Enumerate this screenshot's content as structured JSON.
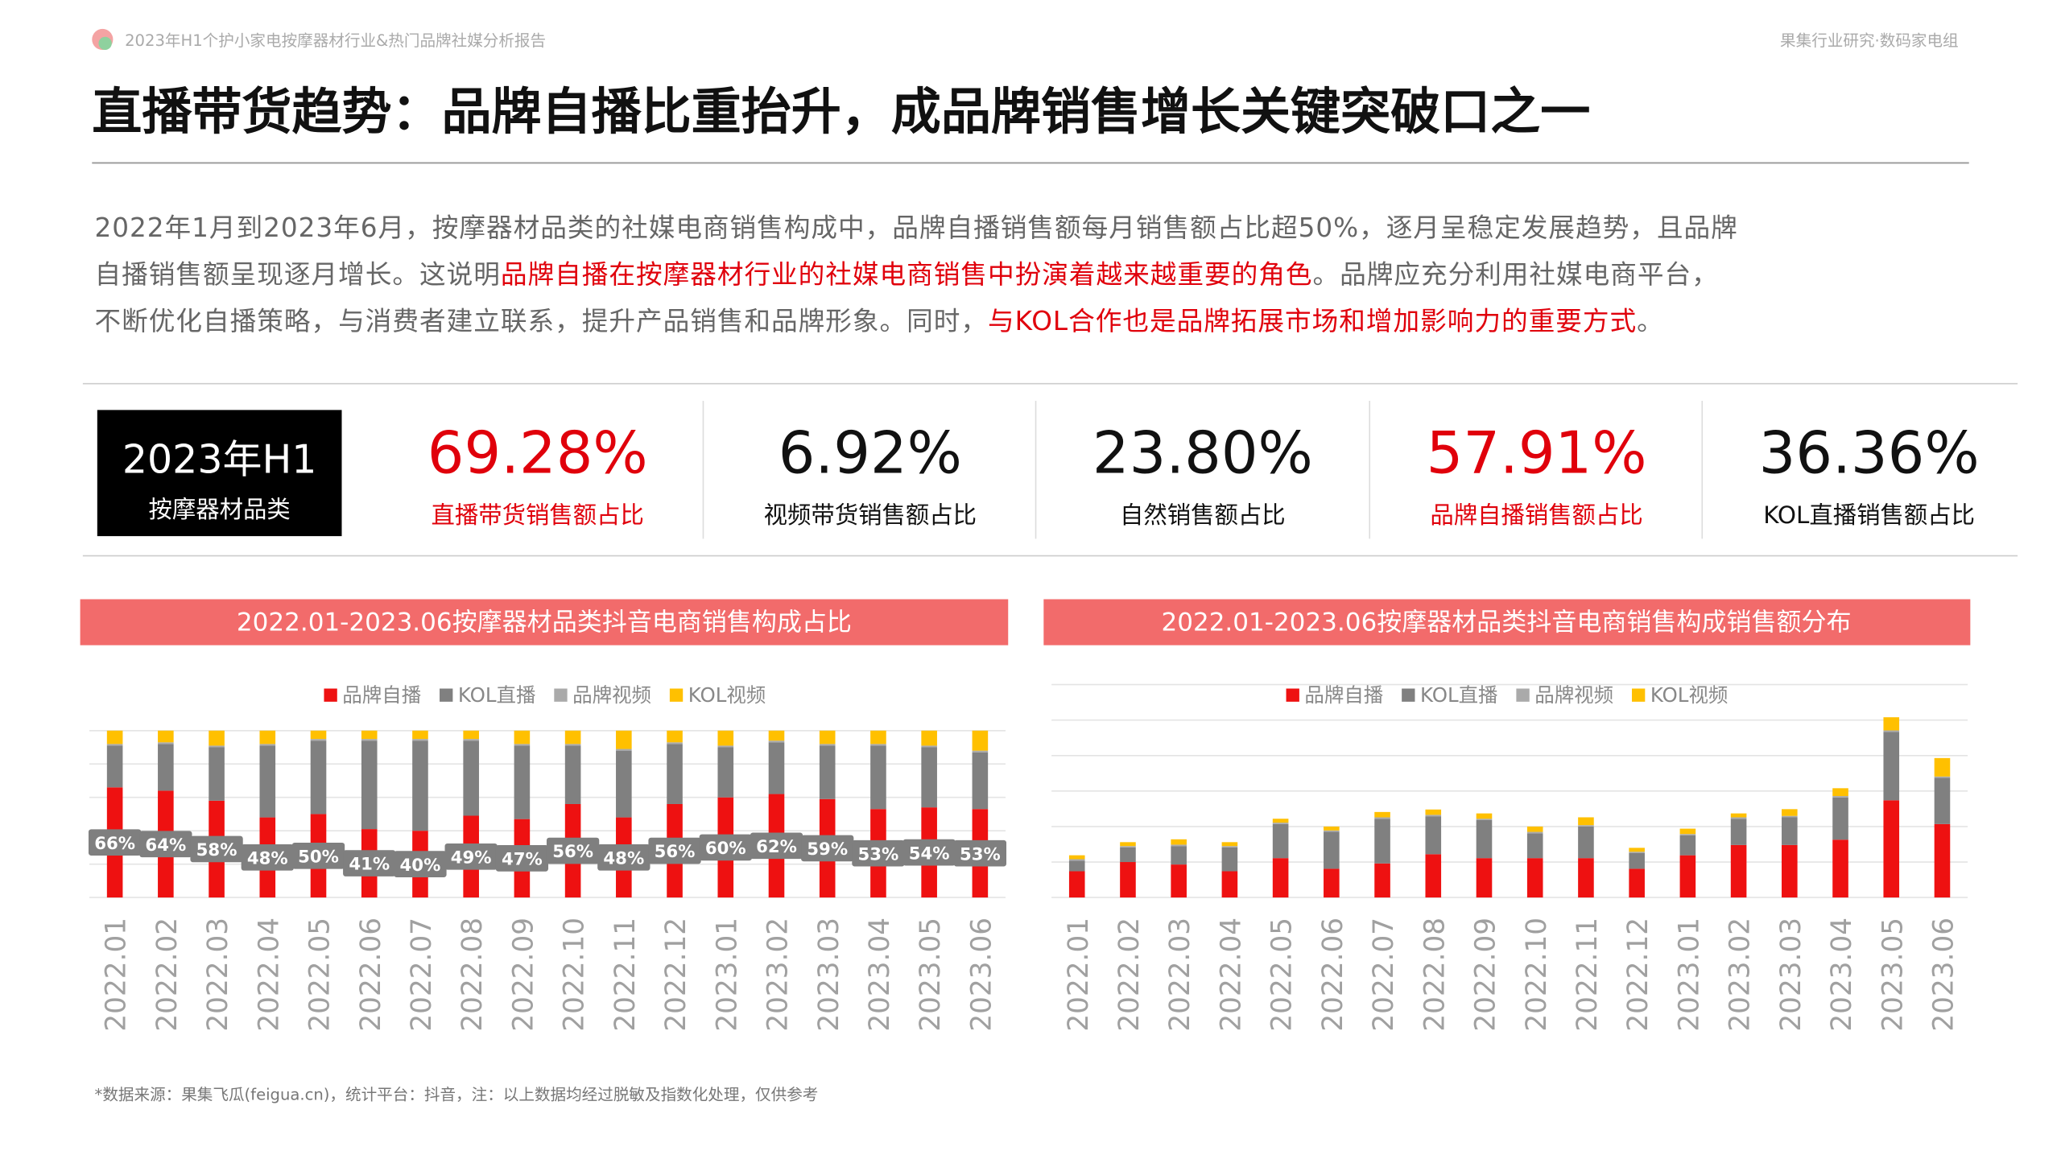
{
  "header": {
    "left": "2023年H1个护小家电按摩器材行业&热门品牌社媒分析报告",
    "right": "果集行业研究·数码家电组"
  },
  "title": "直播带货趋势：品牌自播比重抬升，成品牌销售增长关键突破口之一",
  "paragraph": [
    [
      {
        "text": "2022年1月到2023年6月，按摩器材品类的社媒电商销售构成中，品牌自播销售额每月销售额占比超50%，逐月呈稳定发展趋势，且品牌",
        "color": "#666666"
      }
    ],
    [
      {
        "text": "自播销售额呈现逐月增长。这说明",
        "color": "#666666"
      },
      {
        "text": "品牌自播在按摩器材行业的社媒电商销售中扮演着越来越重要的角色",
        "color": "#e0000b"
      },
      {
        "text": "。品牌应充分利用社媒电商平台，",
        "color": "#666666"
      }
    ],
    [
      {
        "text": "不断优化自播策略，与消费者建立联系，提升产品销售和品牌形象。同时，",
        "color": "#666666"
      },
      {
        "text": "与KOL合作也是品牌拓展市场和增加影响力的重要方式",
        "color": "#e0000b"
      },
      {
        "text": "。",
        "color": "#666666"
      }
    ]
  ],
  "badge": {
    "title": "2023年H1",
    "subtitle": "按摩器材品类"
  },
  "stats": [
    {
      "value": "69.28%",
      "label": "直播带货销售额占比",
      "color": "#e0000b"
    },
    {
      "value": "6.92%",
      "label": "视频带货销售额占比",
      "color": "#111111"
    },
    {
      "value": "23.80%",
      "label": "自然销售额占比",
      "color": "#111111"
    },
    {
      "value": "57.91%",
      "label": "品牌自播销售额占比",
      "color": "#e0000b"
    },
    {
      "value": "36.36%",
      "label": "KOL直播销售额占比",
      "color": "#111111"
    }
  ],
  "chart_data": [
    {
      "type": "stacked_bar",
      "title": "2022.01-2023.06按摩器材品类抖音电商销售构成占比",
      "categories": [
        "2022.01",
        "2022.02",
        "2022.03",
        "2022.04",
        "2022.05",
        "2022.06",
        "2022.07",
        "2022.08",
        "2022.09",
        "2022.10",
        "2022.11",
        "2022.12",
        "2023.01",
        "2023.02",
        "2023.03",
        "2023.04",
        "2023.05",
        "2023.06"
      ],
      "ylim": [
        0,
        100
      ],
      "series": [
        {
          "name": "品牌自播",
          "color": "#ee1111",
          "values": [
            66,
            64,
            58,
            48,
            50,
            41,
            40,
            49,
            47,
            56,
            48,
            56,
            60,
            62,
            59,
            53,
            54,
            53
          ],
          "value_labels": [
            "66%",
            "64%",
            "58%",
            "48%",
            "50%",
            "41%",
            "40%",
            "49%",
            "47%",
            "56%",
            "48%",
            "56%",
            "60%",
            "62%",
            "59%",
            "53%",
            "54%",
            "53%"
          ]
        },
        {
          "name": "KOL直播",
          "color": "#808080",
          "values": [
            25,
            28,
            32,
            43,
            44,
            53,
            54,
            45,
            44,
            35,
            40,
            36,
            30,
            31,
            32,
            38,
            36,
            34
          ]
        },
        {
          "name": "品牌视频",
          "color": "#aaaaaa",
          "values": [
            1,
            1,
            1,
            1,
            1,
            1,
            1,
            1,
            1,
            1,
            1,
            1,
            1,
            1,
            1,
            1,
            1,
            1
          ]
        },
        {
          "name": "KOL视频",
          "color": "#ffc000",
          "values": [
            8,
            7,
            9,
            8,
            5,
            5,
            5,
            5,
            8,
            8,
            11,
            7,
            9,
            6,
            8,
            8,
            9,
            12
          ]
        }
      ]
    },
    {
      "type": "stacked_bar",
      "title": "2022.01-2023.06按摩器材品类抖音电商销售构成销售额分布",
      "categories": [
        "2022.01",
        "2022.02",
        "2022.03",
        "2022.04",
        "2022.05",
        "2022.06",
        "2022.07",
        "2022.08",
        "2022.09",
        "2022.10",
        "2022.11",
        "2022.12",
        "2023.01",
        "2023.02",
        "2023.03",
        "2023.04",
        "2023.05",
        "2023.06"
      ],
      "ylim": [
        0,
        6
      ],
      "series": [
        {
          "name": "品牌自播",
          "color": "#ee1111",
          "values": [
            0.74,
            1.0,
            0.93,
            0.74,
            1.11,
            0.81,
            0.96,
            1.22,
            1.11,
            1.11,
            1.11,
            0.81,
            1.19,
            1.48,
            1.48,
            1.63,
            2.74,
            2.07
          ]
        },
        {
          "name": "KOL直播",
          "color": "#808080",
          "values": [
            0.3,
            0.41,
            0.52,
            0.67,
            0.96,
            1.04,
            1.26,
            1.07,
            1.07,
            0.7,
            0.89,
            0.44,
            0.56,
            0.74,
            0.78,
            1.19,
            1.93,
            1.3
          ]
        },
        {
          "name": "品牌视频",
          "color": "#aaaaaa",
          "values": [
            0.04,
            0.04,
            0.04,
            0.04,
            0.04,
            0.04,
            0.04,
            0.04,
            0.04,
            0.04,
            0.04,
            0.04,
            0.04,
            0.04,
            0.04,
            0.04,
            0.04,
            0.04
          ]
        },
        {
          "name": "KOL视频",
          "color": "#ffc000",
          "values": [
            0.11,
            0.11,
            0.15,
            0.11,
            0.11,
            0.11,
            0.15,
            0.15,
            0.15,
            0.15,
            0.22,
            0.11,
            0.15,
            0.11,
            0.19,
            0.22,
            0.37,
            0.52
          ]
        }
      ]
    }
  ],
  "footer": "*数据来源：果集飞瓜(feigua.cn)，统计平台：抖音，注：以上数据均经过脱敏及指数化处理，仅供参考"
}
